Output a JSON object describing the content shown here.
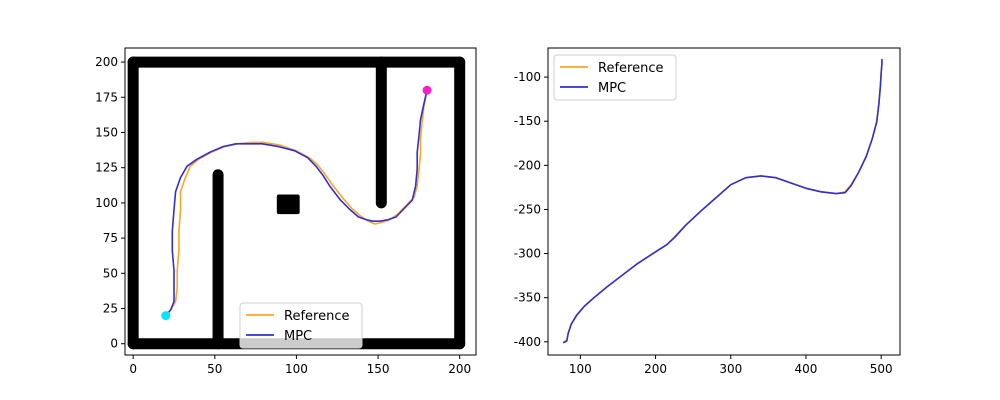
{
  "colors": {
    "reference": "#ffa621",
    "mpc": "#2f2fd3",
    "obstacle": "#000000",
    "start": "#00e5ff",
    "goal": "#ff1ec4",
    "axes": "#000000",
    "background": "#ffffff"
  },
  "chart_data": [
    {
      "type": "line",
      "title": "",
      "xlabel": "",
      "ylabel": "",
      "xlim": [
        -5,
        210
      ],
      "ylim": [
        -8,
        210
      ],
      "xticks": [
        0,
        50,
        100,
        150,
        200
      ],
      "yticks": [
        0,
        25,
        50,
        75,
        100,
        125,
        150,
        175,
        200
      ],
      "grid": false,
      "legend": {
        "placement": "lower center",
        "entries": [
          "Reference",
          "MPC"
        ]
      },
      "walls": [
        {
          "x0": 0,
          "y0": 200,
          "x1": 200,
          "y1": 200
        },
        {
          "x0": 0,
          "y0": 0,
          "x1": 200,
          "y1": 0
        },
        {
          "x0": 0,
          "y0": 0,
          "x1": 0,
          "y1": 200
        },
        {
          "x0": 200,
          "y0": 0,
          "x1": 200,
          "y1": 200
        },
        {
          "x0": 52,
          "y0": 0,
          "x1": 52,
          "y1": 120
        },
        {
          "x0": 152,
          "y0": 100,
          "x1": 152,
          "y1": 200
        }
      ],
      "blocks": [
        {
          "x0": 88,
          "y0": 92,
          "x1": 102,
          "y1": 106
        }
      ],
      "start_point": {
        "x": 20,
        "y": 20
      },
      "goal_point": {
        "x": 180,
        "y": 180
      },
      "series": [
        {
          "name": "Reference",
          "x": [
            20,
            23,
            26,
            27,
            27,
            28,
            28,
            29,
            29,
            32,
            35,
            40,
            48,
            56,
            64,
            72,
            80,
            90,
            100,
            108,
            113,
            117,
            122,
            128,
            134,
            139,
            144,
            148,
            152,
            157,
            162,
            167,
            172,
            174,
            175,
            176,
            176,
            177,
            178,
            180
          ],
          "y": [
            20,
            24,
            30,
            40,
            52,
            66,
            80,
            95,
            108,
            118,
            126,
            131,
            136,
            140,
            142,
            143,
            143,
            141,
            137,
            132,
            127,
            121,
            113,
            104,
            96,
            91,
            87,
            85,
            86,
            88,
            92,
            98,
            104,
            112,
            123,
            135,
            145,
            157,
            168,
            180
          ]
        },
        {
          "name": "MPC",
          "x": [
            20,
            23,
            25,
            25,
            25,
            24,
            24,
            25,
            26,
            29,
            33,
            39,
            47,
            55,
            63,
            71,
            79,
            89,
            99,
            107,
            112,
            116,
            121,
            127,
            133,
            138,
            143,
            147,
            151,
            156,
            161,
            166,
            171,
            173,
            174,
            174,
            175,
            176,
            178,
            180
          ],
          "y": [
            20,
            24,
            30,
            40,
            52,
            66,
            80,
            95,
            108,
            118,
            126,
            131,
            136,
            140,
            142,
            142,
            142,
            140,
            137,
            132,
            126,
            120,
            111,
            102,
            95,
            90,
            88,
            87,
            87,
            88,
            90,
            96,
            102,
            112,
            124,
            136,
            147,
            159,
            170,
            180
          ]
        }
      ]
    },
    {
      "type": "line",
      "title": "",
      "xlabel": "",
      "ylabel": "",
      "xlim": [
        57,
        525
      ],
      "ylim": [
        -415,
        -67
      ],
      "xticks": [
        100,
        200,
        300,
        400,
        500
      ],
      "yticks": [
        -400,
        -350,
        -300,
        -250,
        -200,
        -150,
        -100
      ],
      "grid": false,
      "legend": {
        "placement": "upper left",
        "entries": [
          "Reference",
          "MPC"
        ]
      },
      "series": [
        {
          "name": "Reference",
          "x": [
            78,
            82,
            84,
            88,
            95,
            105,
            118,
            135,
            155,
            175,
            200,
            215,
            225,
            240,
            260,
            280,
            300,
            320,
            340,
            360,
            380,
            400,
            420,
            440,
            452,
            460,
            470,
            480,
            488,
            494,
            497,
            499,
            500,
            501,
            501
          ],
          "y": [
            -400,
            -398,
            -390,
            -380,
            -370,
            -360,
            -350,
            -338,
            -325,
            -312,
            -298,
            -290,
            -281,
            -268,
            -252,
            -237,
            -222,
            -214,
            -212,
            -214,
            -220,
            -226,
            -230,
            -232,
            -230,
            -222,
            -208,
            -190,
            -170,
            -150,
            -130,
            -110,
            -95,
            -85,
            -82
          ]
        },
        {
          "name": "MPC",
          "x": [
            78,
            82,
            84,
            88,
            95,
            105,
            118,
            135,
            155,
            175,
            200,
            215,
            225,
            240,
            260,
            280,
            300,
            320,
            340,
            360,
            380,
            400,
            420,
            440,
            452,
            460,
            470,
            480,
            488,
            494,
            497,
            499,
            500,
            501,
            501
          ],
          "y": [
            -401,
            -399,
            -390,
            -380,
            -370,
            -360,
            -350,
            -338,
            -325,
            -312,
            -298,
            -290,
            -282,
            -268,
            -252,
            -237,
            -222,
            -214,
            -212,
            -214,
            -220,
            -226,
            -230,
            -232,
            -231,
            -223,
            -208,
            -190,
            -170,
            -151,
            -130,
            -110,
            -95,
            -85,
            -80
          ]
        }
      ]
    }
  ]
}
